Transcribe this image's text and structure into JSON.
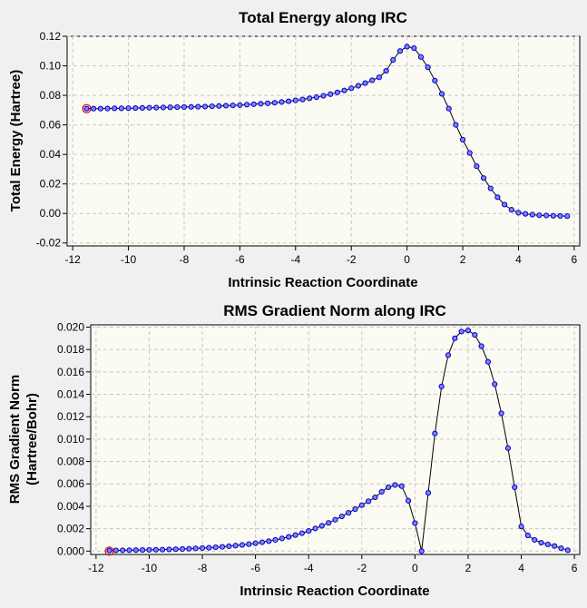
{
  "window": {
    "background": "#f0f0f0"
  },
  "chart_data": [
    {
      "type": "line",
      "title": "Total Energy along IRC",
      "xlabel": "Intrinsic Reaction Coordinate",
      "ylabel": "Total Energy (Hartree)",
      "xlim": [
        -12.2,
        6.2
      ],
      "ylim": [
        -0.022,
        0.12
      ],
      "xticks": [
        -12,
        -10,
        -8,
        -6,
        -4,
        -2,
        0,
        2,
        4,
        6
      ],
      "xtick_labels": [
        "-12",
        "-10",
        "-8",
        "-6",
        "-4",
        "-2",
        "0",
        "2",
        "4",
        "6"
      ],
      "yticks": [
        -0.02,
        0,
        0.02,
        0.04,
        0.06,
        0.08,
        0.1,
        0.12
      ],
      "ytick_labels": [
        "-0.02",
        "0.00",
        "0.02",
        "0.04",
        "0.06",
        "0.08",
        "0.10",
        "0.12"
      ],
      "grid": true,
      "highlighted_point": {
        "x": -11.5,
        "y": 0.071
      },
      "series": [
        {
          "name": "Total Energy",
          "x": [
            -11.5,
            -11.25,
            -11.0,
            -10.75,
            -10.5,
            -10.25,
            -10.0,
            -9.75,
            -9.5,
            -9.25,
            -9.0,
            -8.75,
            -8.5,
            -8.25,
            -8.0,
            -7.75,
            -7.5,
            -7.25,
            -7.0,
            -6.75,
            -6.5,
            -6.25,
            -6.0,
            -5.75,
            -5.5,
            -5.25,
            -5.0,
            -4.75,
            -4.5,
            -4.25,
            -4.0,
            -3.75,
            -3.5,
            -3.25,
            -3.0,
            -2.75,
            -2.5,
            -2.25,
            -2.0,
            -1.75,
            -1.5,
            -1.25,
            -1.0,
            -0.75,
            -0.5,
            -0.25,
            0.0,
            0.25,
            0.5,
            0.75,
            1.0,
            1.25,
            1.5,
            1.75,
            2.0,
            2.25,
            2.5,
            2.75,
            3.0,
            3.25,
            3.5,
            3.75,
            4.0,
            4.25,
            4.5,
            4.75,
            5.0,
            5.25,
            5.5,
            5.75
          ],
          "y": [
            0.071,
            0.071,
            0.071,
            0.0711,
            0.0712,
            0.0712,
            0.0713,
            0.0714,
            0.0715,
            0.0716,
            0.0717,
            0.0718,
            0.0719,
            0.072,
            0.0721,
            0.0722,
            0.0723,
            0.0724,
            0.0726,
            0.0728,
            0.073,
            0.0732,
            0.0734,
            0.0737,
            0.074,
            0.0743,
            0.0746,
            0.075,
            0.0755,
            0.076,
            0.0766,
            0.0772,
            0.078,
            0.0788,
            0.0797,
            0.0808,
            0.082,
            0.0833,
            0.0848,
            0.0865,
            0.0883,
            0.0902,
            0.0922,
            0.0966,
            0.104,
            0.11,
            0.113,
            0.112,
            0.106,
            0.099,
            0.09,
            0.081,
            0.071,
            0.06,
            0.05,
            0.041,
            0.032,
            0.024,
            0.017,
            0.011,
            0.006,
            0.0025,
            0.0005,
            -0.0003,
            -0.0008,
            -0.0012,
            -0.0014,
            -0.0016,
            -0.0017,
            -0.0018
          ]
        }
      ]
    },
    {
      "type": "line",
      "title": "RMS Gradient Norm along IRC",
      "xlabel": "Intrinsic Reaction Coordinate",
      "ylabel": "RMS Gradient Norm",
      "ylabel_line2": "(Hartree/Bohr)",
      "xlim": [
        -12.2,
        6.2
      ],
      "ylim": [
        -0.0003,
        0.0202
      ],
      "xticks": [
        -12,
        -10,
        -8,
        -6,
        -4,
        -2,
        0,
        2,
        4,
        6
      ],
      "xtick_labels": [
        "-12",
        "-10",
        "-8",
        "-6",
        "-4",
        "-2",
        "0",
        "2",
        "4",
        "6"
      ],
      "yticks": [
        0,
        0.002,
        0.004,
        0.006,
        0.008,
        0.01,
        0.012,
        0.014,
        0.016,
        0.018,
        0.02
      ],
      "ytick_labels": [
        "0.000",
        "0.002",
        "0.004",
        "0.006",
        "0.008",
        "0.010",
        "0.012",
        "0.014",
        "0.016",
        "0.018",
        "0.020"
      ],
      "grid": true,
      "highlighted_point": {
        "x": -11.5,
        "y": 0.0
      },
      "series": [
        {
          "name": "RMS Gradient Norm",
          "x": [
            -11.5,
            -11.25,
            -11.0,
            -10.75,
            -10.5,
            -10.25,
            -10.0,
            -9.75,
            -9.5,
            -9.25,
            -9.0,
            -8.75,
            -8.5,
            -8.25,
            -8.0,
            -7.75,
            -7.5,
            -7.25,
            -7.0,
            -6.75,
            -6.5,
            -6.25,
            -6.0,
            -5.75,
            -5.5,
            -5.25,
            -5.0,
            -4.75,
            -4.5,
            -4.25,
            -4.0,
            -3.75,
            -3.5,
            -3.25,
            -3.0,
            -2.75,
            -2.5,
            -2.25,
            -2.0,
            -1.75,
            -1.5,
            -1.25,
            -1.0,
            -0.75,
            -0.5,
            -0.25,
            0.0,
            0.25,
            0.5,
            0.75,
            1.0,
            1.25,
            1.5,
            1.75,
            2.0,
            2.25,
            2.5,
            2.75,
            3.0,
            3.25,
            3.5,
            3.75,
            4.0,
            4.25,
            4.5,
            4.75,
            5.0,
            5.25,
            5.5,
            5.75
          ],
          "y": [
            5e-05,
            6e-05,
            7e-05,
            8e-05,
            9e-05,
            0.0001,
            0.00011,
            0.00012,
            0.00013,
            0.00015,
            0.00017,
            0.00019,
            0.00021,
            0.00024,
            0.00027,
            0.0003,
            0.00034,
            0.00038,
            0.00043,
            0.00049,
            0.00055,
            0.00062,
            0.0007,
            0.00079,
            0.00089,
            0.001,
            0.00113,
            0.00127,
            0.00143,
            0.0016,
            0.0018,
            0.00202,
            0.00226,
            0.00252,
            0.0028,
            0.0031,
            0.00342,
            0.00375,
            0.0041,
            0.00445,
            0.0048,
            0.0053,
            0.0057,
            0.0059,
            0.0058,
            0.0045,
            0.0025,
            0.0,
            0.0052,
            0.0105,
            0.0147,
            0.0175,
            0.019,
            0.0196,
            0.0197,
            0.0193,
            0.0183,
            0.0169,
            0.0149,
            0.0123,
            0.0092,
            0.0057,
            0.0022,
            0.0014,
            0.001,
            0.00075,
            0.0006,
            0.00045,
            0.00025,
            8e-05
          ]
        }
      ]
    }
  ]
}
